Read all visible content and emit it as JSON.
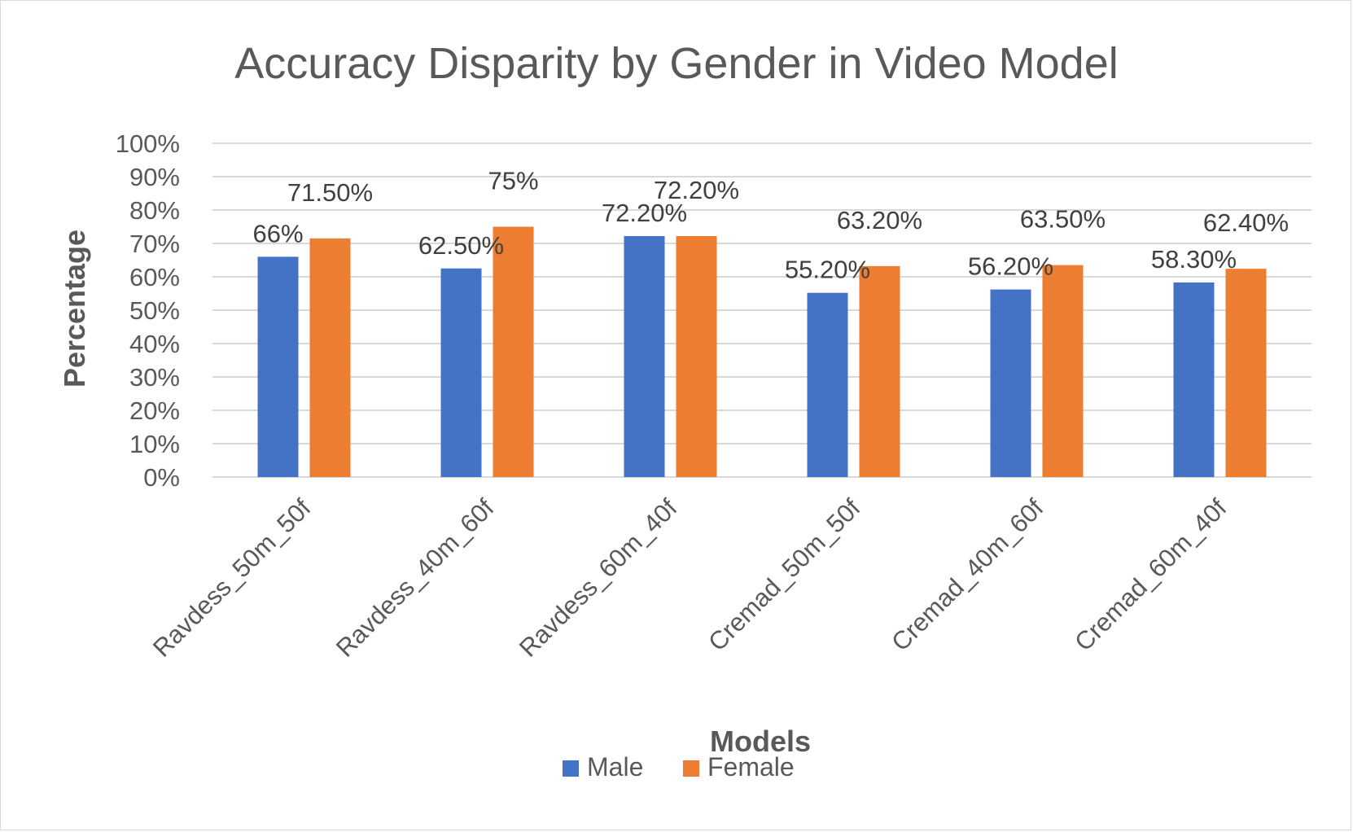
{
  "chart_data": {
    "type": "bar",
    "title": "Accuracy Disparity by Gender in Video Model",
    "xlabel": "Models",
    "ylabel": "Percentage",
    "ylim": [
      0,
      100
    ],
    "y_ticks": [
      "0%",
      "10%",
      "20%",
      "30%",
      "40%",
      "50%",
      "60%",
      "70%",
      "80%",
      "90%",
      "100%"
    ],
    "categories": [
      "Ravdess_50m_50f",
      "Ravdess_40m_60f",
      "Ravdess_60m_40f",
      "Cremad_50m_50f",
      "Cremad_40m_60f",
      "Cremad_60m_40f"
    ],
    "series": [
      {
        "name": "Male",
        "color": "#4472c4",
        "values": [
          66,
          62.5,
          72.2,
          55.2,
          56.2,
          58.3
        ],
        "labels": [
          "66%",
          "62.50%",
          "72.20%",
          "55.20%",
          "56.20%",
          "58.30%"
        ]
      },
      {
        "name": "Female",
        "color": "#ed7d31",
        "values": [
          71.5,
          75,
          72.2,
          63.2,
          63.5,
          62.4
        ],
        "labels": [
          "71.50%",
          "75%",
          "72.20%",
          "63.20%",
          "63.50%",
          "62.40%"
        ]
      }
    ],
    "grid": true,
    "legend_position": "bottom"
  }
}
